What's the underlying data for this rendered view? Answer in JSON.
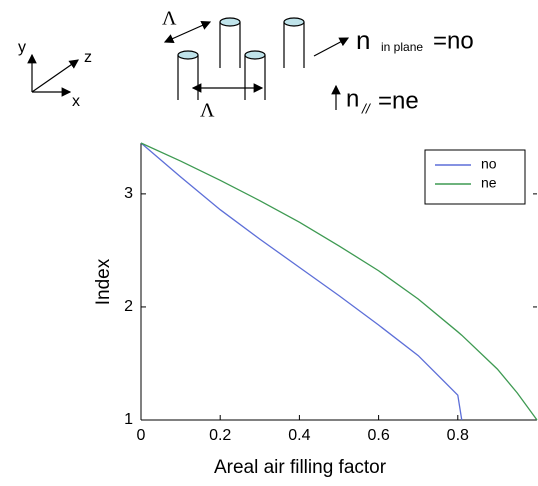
{
  "diagram": {
    "axes": [
      "y",
      "z",
      "x"
    ],
    "lattice_labels": [
      "Λ",
      "Λ"
    ],
    "n_in_plane": [
      "n",
      "in plane",
      "=no"
    ],
    "n_parallel": [
      "n",
      "//",
      "=ne"
    ]
  },
  "chart_data": {
    "type": "line",
    "x_label": "Areal air filling factor",
    "y_label": "Index",
    "x": [
      0,
      0.1,
      0.2,
      0.3,
      0.4,
      0.5,
      0.6,
      0.7,
      0.8,
      0.81,
      0.9,
      0.95,
      1
    ],
    "series": [
      {
        "name": "no",
        "color": "#5d6fd8",
        "values": [
          3.45,
          3.15,
          2.86,
          2.6,
          2.35,
          2.1,
          1.84,
          1.57,
          1.22,
          1.0,
          null,
          null,
          null
        ]
      },
      {
        "name": "ne",
        "color": "#3e9a52",
        "values": [
          3.45,
          3.29,
          3.12,
          2.94,
          2.75,
          2.54,
          2.32,
          2.07,
          1.78,
          1.75,
          1.45,
          1.24,
          1.0
        ]
      }
    ],
    "xlim": [
      0,
      1
    ],
    "ylim": [
      1,
      3.45
    ],
    "xticks": [
      0,
      0.2,
      0.4,
      0.6,
      0.8
    ],
    "yticks": [
      1,
      2,
      3
    ],
    "legend": "upper right"
  }
}
